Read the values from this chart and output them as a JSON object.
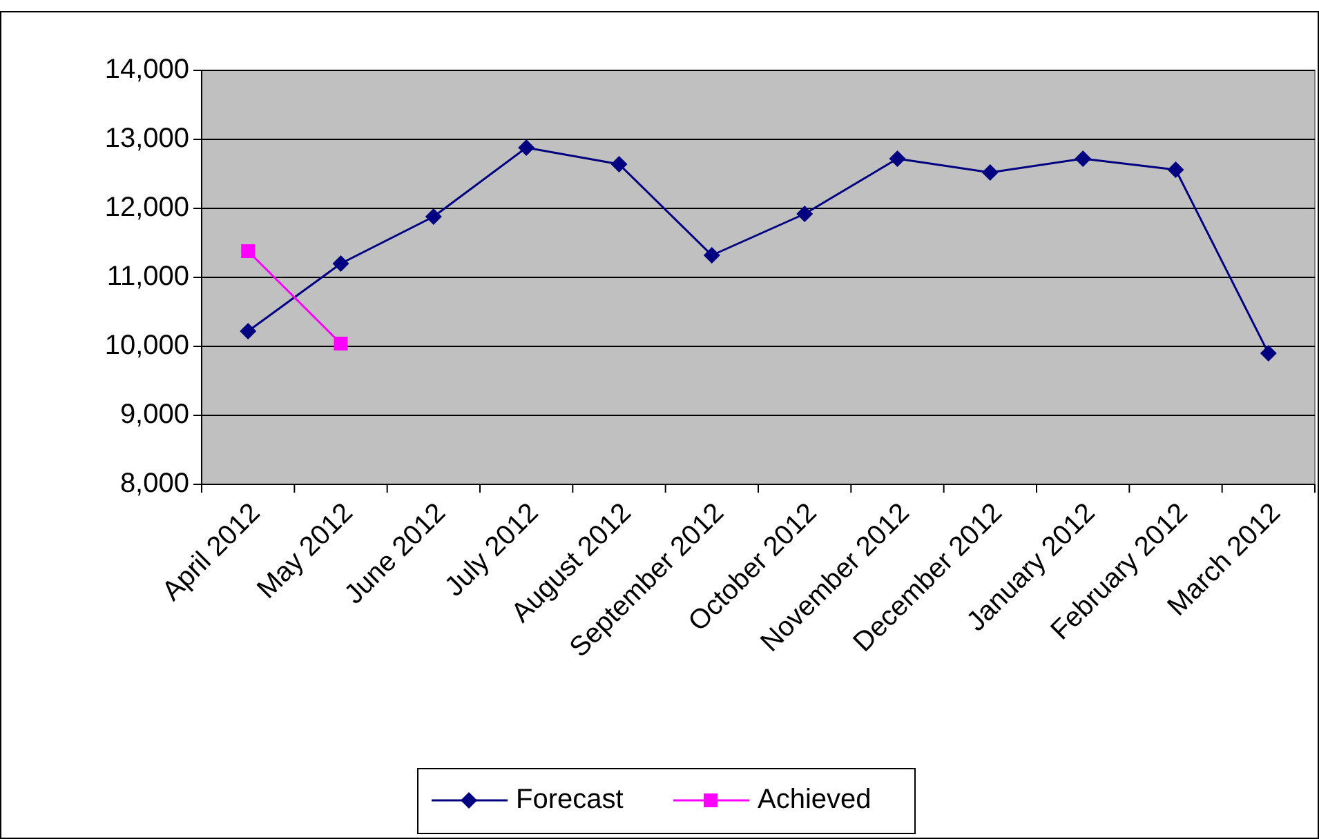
{
  "chart_data": {
    "type": "line",
    "categories": [
      "April 2012",
      "May 2012",
      "June 2012",
      "July 2012",
      "August 2012",
      "September 2012",
      "October 2012",
      "November 2012",
      "December 2012",
      "January 2012",
      "February 2012",
      "March 2012"
    ],
    "series": [
      {
        "name": "Forecast",
        "color": "#000080",
        "marker": "diamond",
        "values": [
          10220,
          11200,
          11880,
          12880,
          12640,
          11320,
          11920,
          12720,
          12520,
          12720,
          12560,
          9900
        ]
      },
      {
        "name": "Achieved",
        "color": "#ff00ff",
        "marker": "square",
        "values": [
          11380,
          10040,
          null,
          null,
          null,
          null,
          null,
          null,
          null,
          null,
          null,
          null
        ]
      }
    ],
    "ylim": [
      8000,
      14000
    ],
    "yticks": [
      {
        "value": 8000,
        "label": "8,000"
      },
      {
        "value": 9000,
        "label": "9,000"
      },
      {
        "value": 10000,
        "label": "10,000"
      },
      {
        "value": 11000,
        "label": "11,000"
      },
      {
        "value": 12000,
        "label": "12,000"
      },
      {
        "value": 13000,
        "label": "13,000"
      },
      {
        "value": 14000,
        "label": "14,000"
      }
    ],
    "grid": "y",
    "legend": "bottom"
  }
}
